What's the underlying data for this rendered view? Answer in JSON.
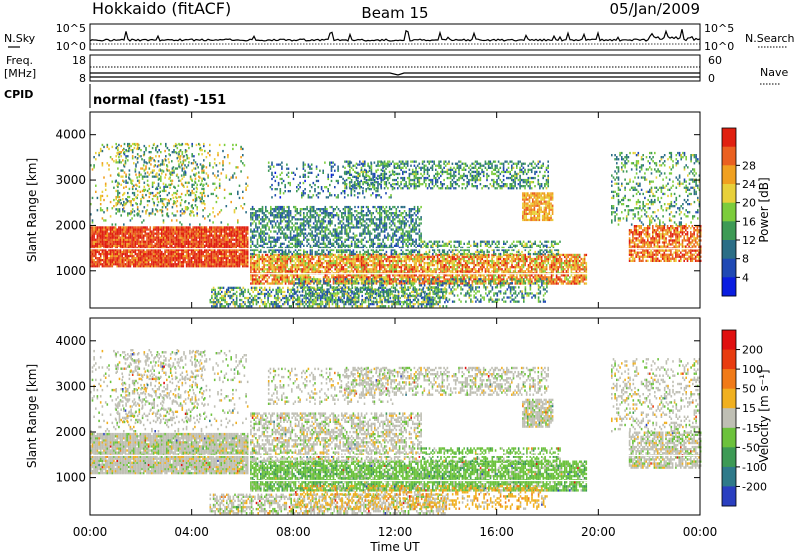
{
  "header": {
    "station": "Hokkaido (fitACF)",
    "beam": "Beam 15",
    "date": "05/Jan/2009"
  },
  "summary": {
    "nsky_label": "N.Sky",
    "nsearch_label": "N.Search",
    "noise_ticks": [
      "10^5",
      "10^0"
    ],
    "freq_label": "Freq.",
    "freq_unit": "[MHz]",
    "freq_ticks": [
      "18",
      "8"
    ],
    "nave_label": "Nave",
    "nave_ticks": [
      "60",
      "0"
    ],
    "cpid_label": "CPID",
    "cpid_value": "normal (fast) -151"
  },
  "chart_data": [
    {
      "type": "heatmap",
      "name": "power",
      "ylabel": "Slant Range [km]",
      "xlabel": "",
      "y_ticks": [
        "1000",
        "2000",
        "3000",
        "4000"
      ],
      "x_ticks": [
        "00:00",
        "04:00",
        "08:00",
        "12:00",
        "16:00",
        "20:00",
        "00:00"
      ],
      "xlim_hours": [
        0,
        24
      ],
      "ylim_km": [
        180,
        4500
      ],
      "colorbar": {
        "label": "Power [dB]",
        "ticks": [
          "4",
          "8",
          "12",
          "16",
          "20",
          "24",
          "28"
        ],
        "range": [
          0,
          30
        ],
        "colors": [
          "#0a1de0",
          "#1f49b4",
          "#2b6e86",
          "#3d9a55",
          "#7ccc3c",
          "#e8d03a",
          "#f0a020",
          "#ea6020",
          "#e02010"
        ]
      }
    },
    {
      "type": "heatmap",
      "name": "velocity",
      "ylabel": "Slant Range [km]",
      "xlabel": "Time UT",
      "y_ticks": [
        "1000",
        "2000",
        "3000",
        "4000"
      ],
      "x_ticks": [
        "00:00",
        "04:00",
        "08:00",
        "12:00",
        "16:00",
        "20:00",
        "00:00"
      ],
      "xlim_hours": [
        0,
        24
      ],
      "ylim_km": [
        180,
        4500
      ],
      "colorbar": {
        "label": "Velocity [m s⁻¹]",
        "ticks": [
          "200",
          "100",
          "50",
          "15",
          "-15",
          "-50",
          "-100",
          "-200"
        ],
        "colors": [
          "#2a3fc0",
          "#2f7a8a",
          "#3d9a55",
          "#6cc23c",
          "#bfbfb4",
          "#f0b020",
          "#f07a18",
          "#e83c10",
          "#e01010"
        ]
      }
    }
  ]
}
